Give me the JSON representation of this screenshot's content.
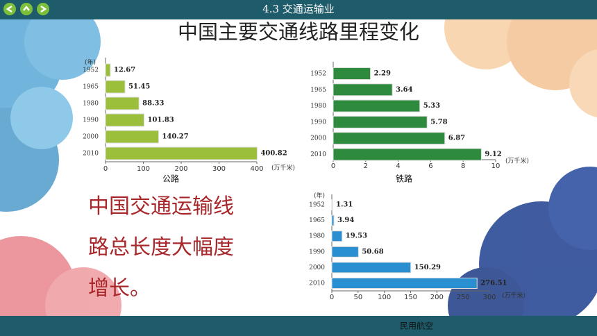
{
  "header": {
    "title": "4.3 交通运输业"
  },
  "title": "中国主要交通线路里程变化",
  "side_text": [
    "中国交通运输线",
    "路总长度大幅度",
    "增长。"
  ],
  "chart_data": [
    {
      "type": "bar",
      "orientation": "horizontal",
      "title": "公路",
      "x_label": "(万千米)",
      "y_label": "(年)",
      "categories": [
        "1952",
        "1965",
        "1980",
        "1990",
        "2000",
        "2010"
      ],
      "values": [
        12.67,
        51.45,
        88.33,
        101.83,
        140.27,
        400.82
      ],
      "color": "#9bbf3a",
      "xlim": [
        0,
        400
      ],
      "xticks": [
        0,
        100,
        200,
        300,
        400
      ]
    },
    {
      "type": "bar",
      "orientation": "horizontal",
      "title": "铁路",
      "x_label": "(万千米)",
      "categories": [
        "1952",
        "1965",
        "1980",
        "1990",
        "2000",
        "2010"
      ],
      "values": [
        2.29,
        3.64,
        5.33,
        5.78,
        6.87,
        9.12
      ],
      "color": "#2e8b3e",
      "xlim": [
        0,
        10
      ],
      "xticks": [
        0,
        2,
        4,
        6,
        8,
        10
      ]
    },
    {
      "type": "bar",
      "orientation": "horizontal",
      "title": "民用航空",
      "x_label": "(万千米)",
      "y_label": "(年)",
      "categories": [
        "1952",
        "1965",
        "1980",
        "1990",
        "2000",
        "2010"
      ],
      "values": [
        1.31,
        3.94,
        19.53,
        50.68,
        150.29,
        276.51
      ],
      "color": "#2a8fd0",
      "xlim": [
        0,
        300
      ],
      "xticks": [
        0,
        50,
        100,
        150,
        200,
        250,
        300
      ]
    }
  ]
}
